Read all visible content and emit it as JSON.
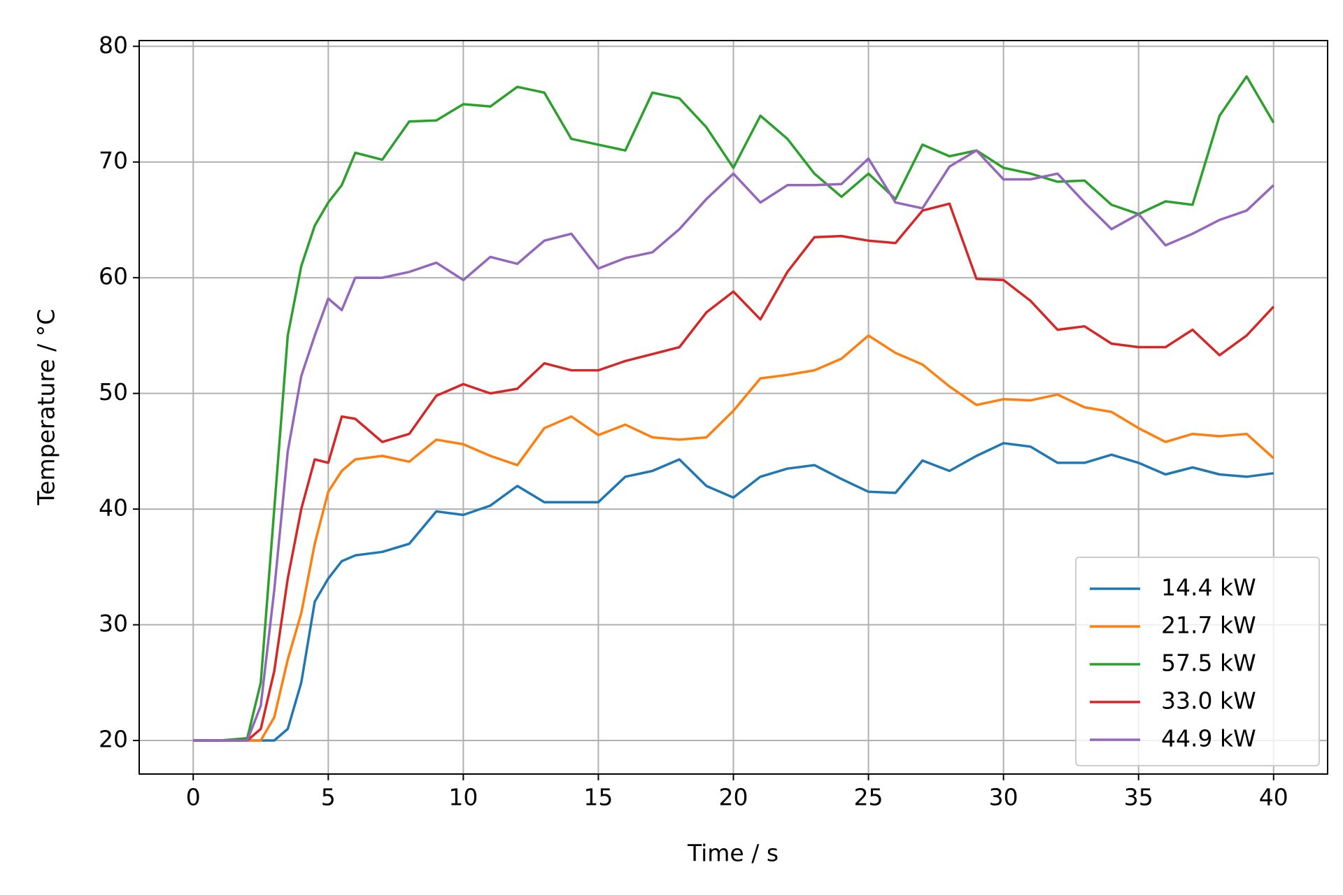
{
  "chart_data": {
    "type": "line",
    "x_label": "Time / s",
    "y_label": "Temperature / °C",
    "x": [
      0,
      1,
      2,
      2.5,
      3,
      3.5,
      4,
      4.5,
      5,
      5.5,
      6,
      7,
      8,
      9,
      10,
      11,
      12,
      13,
      14,
      15,
      16,
      17,
      18,
      19,
      20,
      21,
      22,
      23,
      24,
      25,
      26,
      27,
      28,
      29,
      30,
      31,
      32,
      33,
      34,
      35,
      36,
      37,
      38,
      39,
      40
    ],
    "series": [
      {
        "name": "14.4 kW",
        "color": "#1f77b4",
        "values": [
          20,
          20,
          20,
          20,
          20,
          21,
          25,
          32,
          34,
          35.5,
          36,
          36.3,
          37,
          39.8,
          39.5,
          40.3,
          42,
          40.6,
          40.6,
          40.6,
          42.8,
          43.3,
          44.3,
          42,
          41,
          42.8,
          43.5,
          43.8,
          42.6,
          41.5,
          41.4,
          44.2,
          43.3,
          44.6,
          45.7,
          45.4,
          44,
          44,
          44.7,
          44,
          43,
          43.6,
          43,
          42.8,
          43.1
        ]
      },
      {
        "name": "21.7 kW",
        "color": "#ff7f0e",
        "values": [
          20,
          20,
          20,
          20,
          22,
          27,
          31,
          37,
          41.5,
          43.3,
          44.3,
          44.6,
          44.1,
          46,
          45.6,
          44.6,
          43.8,
          47,
          48,
          46.4,
          47.3,
          46.2,
          46,
          46.2,
          48.5,
          51.3,
          51.6,
          52,
          53,
          55,
          53.5,
          52.5,
          50.6,
          49,
          49.5,
          49.4,
          49.9,
          48.8,
          48.4,
          47,
          45.8,
          46.5,
          46.3,
          46.5,
          44.4
        ]
      },
      {
        "name": "57.5 kW",
        "color": "#2ca02c",
        "values": [
          20,
          20,
          20.2,
          25,
          40,
          55,
          61,
          64.5,
          66.5,
          68,
          70.8,
          70.2,
          73.5,
          73.6,
          75,
          74.8,
          76.5,
          76,
          72,
          71.5,
          71,
          76,
          75.5,
          73,
          69.5,
          74,
          72,
          69,
          67,
          69,
          66.8,
          71.5,
          70.5,
          71,
          69.5,
          69,
          68.3,
          68.4,
          66.3,
          65.5,
          66.6,
          66.3,
          74,
          77.4,
          73.4
        ]
      },
      {
        "name": "33.0 kW",
        "color": "#d62728",
        "values": [
          20,
          20,
          20,
          21,
          26,
          34,
          40,
          44.3,
          44,
          48,
          47.8,
          45.8,
          46.5,
          49.8,
          50.8,
          50,
          50.4,
          52.6,
          52,
          52,
          52.8,
          53.4,
          54,
          57,
          58.8,
          56.4,
          60.5,
          63.5,
          63.6,
          63.2,
          63,
          65.8,
          66.4,
          59.9,
          59.8,
          58,
          55.5,
          55.8,
          54.3,
          54,
          54,
          55.5,
          53.3,
          55,
          57.5
        ]
      },
      {
        "name": "44.9 kW",
        "color": "#9467bd",
        "values": [
          20,
          20,
          20,
          23,
          33,
          45,
          51.5,
          55,
          58.2,
          57.2,
          60,
          60,
          60.5,
          61.3,
          59.8,
          61.8,
          61.2,
          63.2,
          63.8,
          60.8,
          61.7,
          62.2,
          64.2,
          66.8,
          69,
          66.5,
          68,
          68,
          68.1,
          70.3,
          66.5,
          66,
          69.6,
          71,
          68.5,
          68.5,
          69,
          66.5,
          64.2,
          65.5,
          62.8,
          63.8,
          65,
          65.8,
          68
        ]
      }
    ],
    "xlim": [
      -2,
      42
    ],
    "xticks": [
      0,
      5,
      10,
      15,
      20,
      25,
      30,
      35,
      40
    ],
    "ylim": [
      17.1,
      80.5
    ],
    "yticks": [
      20,
      30,
      40,
      50,
      60,
      70,
      80
    ],
    "grid": true,
    "legend": "lower right"
  }
}
